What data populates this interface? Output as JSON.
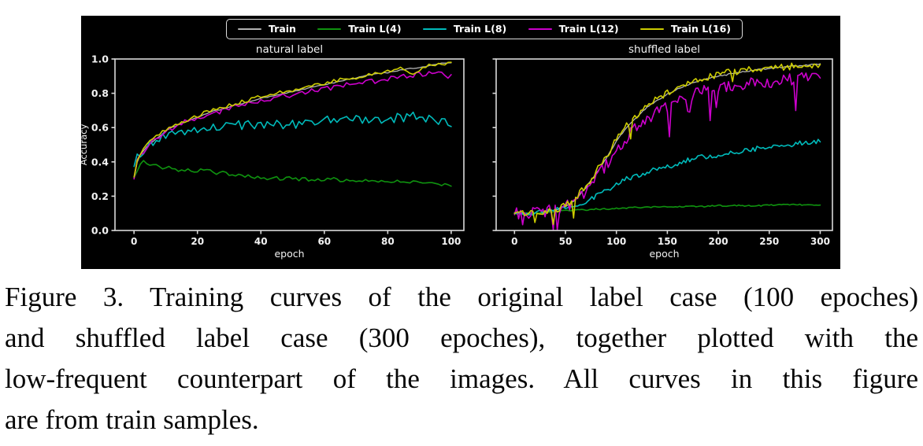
{
  "figure": {
    "legend": {
      "entries": [
        {
          "label": "Train",
          "color": "#b3b3b3"
        },
        {
          "label": "Train L(4)",
          "color": "#0f930f"
        },
        {
          "label": "Train L(8)",
          "color": "#00bbbb"
        },
        {
          "label": "Train L(12)",
          "color": "#cc00cc"
        },
        {
          "label": "Train L(16)",
          "color": "#cccc00"
        }
      ]
    }
  },
  "chart_data": [
    {
      "type": "line",
      "title": "natural label",
      "xlabel": "epoch",
      "ylabel": "Accuracy",
      "xlim": [
        -6,
        104
      ],
      "ylim": [
        0,
        1
      ],
      "xticks": [
        0,
        20,
        40,
        60,
        80,
        100
      ],
      "xtick_labels": [
        "0",
        "20",
        "40",
        "60",
        "80",
        "100"
      ],
      "yticks": [
        0,
        0.2,
        0.4,
        0.6,
        0.8,
        1.0
      ],
      "ytick_labels": [
        "0.0",
        "0.2",
        "0.4",
        "0.6",
        "0.8",
        "1.0"
      ],
      "ytick_labels_visible": true,
      "grid": false,
      "sample_step": 1,
      "series": [
        {
          "name": "Train",
          "color": "#b3b3b3",
          "width": 1.3,
          "noise": 0.003,
          "x": [
            0,
            1,
            2,
            4,
            6,
            8,
            10,
            13,
            16,
            20,
            24,
            28,
            32,
            36,
            40,
            45,
            50,
            55,
            60,
            65,
            70,
            75,
            80,
            85,
            90,
            95,
            100
          ],
          "y": [
            0.3,
            0.4,
            0.44,
            0.49,
            0.52,
            0.55,
            0.58,
            0.61,
            0.63,
            0.66,
            0.69,
            0.71,
            0.73,
            0.75,
            0.77,
            0.79,
            0.81,
            0.83,
            0.85,
            0.87,
            0.89,
            0.91,
            0.92,
            0.94,
            0.95,
            0.97,
            0.98
          ]
        },
        {
          "name": "Train L(4)",
          "color": "#0f930f",
          "width": 1.6,
          "noise": 0.012,
          "x": [
            0,
            2,
            3,
            5,
            8,
            12,
            16,
            20,
            25,
            30,
            35,
            40,
            50,
            60,
            70,
            80,
            90,
            100
          ],
          "y": [
            0.31,
            0.38,
            0.4,
            0.38,
            0.37,
            0.36,
            0.35,
            0.35,
            0.34,
            0.33,
            0.32,
            0.31,
            0.3,
            0.3,
            0.29,
            0.29,
            0.28,
            0.27
          ]
        },
        {
          "name": "Train L(8)",
          "color": "#00bbbb",
          "width": 1.6,
          "noise": 0.027,
          "x": [
            0,
            2,
            4,
            6,
            8,
            10,
            14,
            18,
            22,
            26,
            30,
            40,
            50,
            60,
            70,
            80,
            90,
            95,
            100
          ],
          "y": [
            0.39,
            0.45,
            0.49,
            0.52,
            0.54,
            0.56,
            0.57,
            0.59,
            0.6,
            0.61,
            0.61,
            0.62,
            0.62,
            0.64,
            0.65,
            0.65,
            0.67,
            0.64,
            0.63
          ]
        },
        {
          "name": "Train L(12)",
          "color": "#cc00cc",
          "width": 1.6,
          "noise": 0.016,
          "x": [
            0,
            1,
            2,
            4,
            6,
            8,
            10,
            13,
            16,
            20,
            24,
            28,
            32,
            36,
            40,
            45,
            50,
            55,
            60,
            65,
            70,
            75,
            80,
            85,
            90,
            95,
            100
          ],
          "y": [
            0.3,
            0.4,
            0.44,
            0.49,
            0.52,
            0.55,
            0.58,
            0.61,
            0.63,
            0.66,
            0.68,
            0.7,
            0.72,
            0.74,
            0.76,
            0.78,
            0.79,
            0.81,
            0.83,
            0.84,
            0.86,
            0.87,
            0.88,
            0.9,
            0.91,
            0.92,
            0.9
          ]
        },
        {
          "name": "Train L(16)",
          "color": "#cccc00",
          "width": 1.6,
          "noise": 0.011,
          "x": [
            0,
            1,
            2,
            4,
            6,
            8,
            10,
            13,
            16,
            20,
            24,
            28,
            32,
            36,
            40,
            45,
            50,
            55,
            60,
            65,
            70,
            75,
            80,
            85,
            88,
            92,
            96,
            100
          ],
          "y": [
            0.31,
            0.41,
            0.45,
            0.5,
            0.53,
            0.56,
            0.59,
            0.62,
            0.64,
            0.67,
            0.7,
            0.72,
            0.74,
            0.76,
            0.78,
            0.8,
            0.82,
            0.84,
            0.86,
            0.88,
            0.89,
            0.91,
            0.93,
            0.95,
            0.91,
            0.96,
            0.97,
            0.97
          ]
        }
      ]
    },
    {
      "type": "line",
      "title": "shuffled label",
      "xlabel": "epoch",
      "ylabel": "",
      "xlim": [
        -18,
        312
      ],
      "ylim": [
        0,
        1
      ],
      "xticks": [
        0,
        50,
        100,
        150,
        200,
        250,
        300
      ],
      "xtick_labels": [
        "0",
        "50",
        "100",
        "150",
        "200",
        "250",
        "300"
      ],
      "yticks": [
        0,
        0.2,
        0.4,
        0.6,
        0.8,
        1.0
      ],
      "ytick_labels": [
        "0.0",
        "0.2",
        "0.4",
        "0.6",
        "0.8",
        "1.0"
      ],
      "ytick_labels_visible": false,
      "grid": false,
      "sample_step": 2,
      "series": [
        {
          "name": "Train",
          "color": "#b3b3b3",
          "width": 1.3,
          "noise": 0.004,
          "x": [
            0,
            10,
            20,
            30,
            40,
            50,
            60,
            70,
            80,
            90,
            100,
            110,
            120,
            130,
            140,
            155,
            170,
            185,
            200,
            220,
            240,
            260,
            280,
            300
          ],
          "y": [
            0.1,
            0.1,
            0.1,
            0.11,
            0.12,
            0.14,
            0.18,
            0.25,
            0.33,
            0.42,
            0.52,
            0.6,
            0.66,
            0.72,
            0.76,
            0.81,
            0.85,
            0.88,
            0.9,
            0.92,
            0.94,
            0.95,
            0.96,
            0.97
          ]
        },
        {
          "name": "Train L(4)",
          "color": "#0f930f",
          "width": 1.6,
          "noise": 0.004,
          "x": [
            0,
            10,
            20,
            30,
            40,
            50,
            60,
            70,
            80,
            90,
            100,
            110,
            120,
            130,
            140,
            155,
            170,
            185,
            200,
            220,
            240,
            260,
            280,
            300
          ],
          "y": [
            0.095,
            0.1,
            0.1,
            0.105,
            0.11,
            0.115,
            0.12,
            0.12,
            0.125,
            0.125,
            0.13,
            0.13,
            0.135,
            0.135,
            0.14,
            0.14,
            0.14,
            0.14,
            0.145,
            0.145,
            0.145,
            0.15,
            0.15,
            0.15
          ]
        },
        {
          "name": "Train L(8)",
          "color": "#00bbbb",
          "width": 1.6,
          "noise": 0.014,
          "x": [
            0,
            10,
            20,
            30,
            40,
            50,
            60,
            70,
            80,
            90,
            100,
            110,
            120,
            130,
            140,
            155,
            170,
            185,
            200,
            220,
            240,
            260,
            280,
            300
          ],
          "y": [
            0.1,
            0.1,
            0.1,
            0.11,
            0.12,
            0.13,
            0.15,
            0.17,
            0.2,
            0.23,
            0.27,
            0.3,
            0.32,
            0.34,
            0.36,
            0.38,
            0.41,
            0.43,
            0.44,
            0.46,
            0.48,
            0.49,
            0.51,
            0.52
          ]
        },
        {
          "name": "Train L(12)",
          "color": "#cc00cc",
          "width": 1.6,
          "noise": 0.035,
          "spikes": {
            "prob": 0.08,
            "depth": 0.17
          },
          "x": [
            0,
            10,
            20,
            30,
            40,
            50,
            60,
            70,
            80,
            90,
            100,
            110,
            120,
            130,
            140,
            155,
            170,
            185,
            200,
            220,
            240,
            260,
            280,
            300
          ],
          "y": [
            0.1,
            0.1,
            0.1,
            0.11,
            0.12,
            0.14,
            0.17,
            0.23,
            0.3,
            0.38,
            0.47,
            0.54,
            0.6,
            0.65,
            0.69,
            0.74,
            0.78,
            0.81,
            0.83,
            0.85,
            0.86,
            0.87,
            0.89,
            0.9
          ]
        },
        {
          "name": "Train L(16)",
          "color": "#cccc00",
          "width": 1.6,
          "noise": 0.02,
          "spikes": {
            "prob": 0.06,
            "depth": 0.1
          },
          "x": [
            0,
            10,
            20,
            30,
            40,
            50,
            60,
            70,
            80,
            90,
            100,
            110,
            120,
            130,
            140,
            155,
            170,
            185,
            200,
            220,
            240,
            260,
            280,
            300
          ],
          "y": [
            0.1,
            0.1,
            0.1,
            0.11,
            0.12,
            0.15,
            0.19,
            0.26,
            0.34,
            0.43,
            0.53,
            0.61,
            0.67,
            0.73,
            0.77,
            0.82,
            0.86,
            0.89,
            0.91,
            0.93,
            0.94,
            0.95,
            0.96,
            0.97
          ]
        }
      ]
    }
  ],
  "caption": {
    "lines": [
      "Figure 3. Training curves of the original label case (100 epoches)",
      "and shuffled label case (300 epoches), together plotted with the",
      "low-frequent counterpart of the images. All curves in this figure",
      "are from train samples."
    ]
  }
}
